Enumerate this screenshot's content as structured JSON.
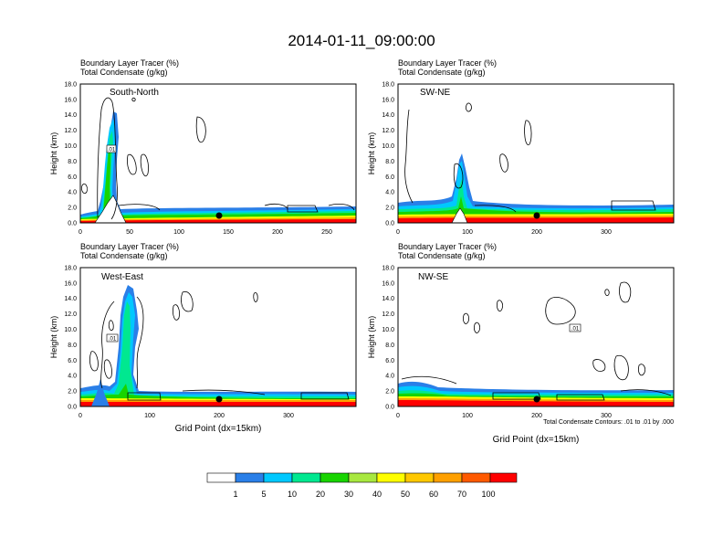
{
  "title": "2014-01-11_09:00:00",
  "colorbar": {
    "colors": [
      "#ffffff",
      "#2a7fe8",
      "#00c8ff",
      "#00e890",
      "#18d400",
      "#a8e840",
      "#ffff00",
      "#ffc800",
      "#ffa000",
      "#ff5a00",
      "#ff0000"
    ],
    "labels": [
      "1",
      "5",
      "10",
      "20",
      "30",
      "40",
      "50",
      "60",
      "70",
      "100"
    ]
  },
  "footnote": "Total Condensate Contours: .01 to .01 by .000",
  "chart_data": [
    {
      "type": "heatmap",
      "panel": "top-left",
      "title": "South-North",
      "subtitle_line1": "Boundary Layer Tracer   (%)",
      "subtitle_line2": "Total Condensate   (g/kg)",
      "ylabel": "Height (km)",
      "xlabel": "",
      "ylim": [
        0,
        18
      ],
      "xlim": [
        0,
        280
      ],
      "xticks": [
        "0",
        "50",
        "100",
        "150",
        "200",
        "250"
      ],
      "yticks": [
        "0.0",
        "2.0",
        "4.0",
        "6.0",
        "8.0",
        "10.0",
        "12.0",
        "14.0",
        "16.0",
        "18.0"
      ],
      "contour_label": ".01",
      "marker_x": 140
    },
    {
      "type": "heatmap",
      "panel": "top-right",
      "title": "SW-NE",
      "subtitle_line1": "Boundary Layer Tracer   (%)",
      "subtitle_line2": "Total Condensate   (g/kg)",
      "ylabel": "Height (km)",
      "xlabel": "",
      "ylim": [
        0,
        18
      ],
      "xlim": [
        0,
        400
      ],
      "xticks": [
        "0",
        "100",
        "200",
        "300"
      ],
      "yticks": [
        "0.0",
        "2.0",
        "4.0",
        "6.0",
        "8.0",
        "10.0",
        "12.0",
        "14.0",
        "16.0",
        "18.0"
      ],
      "marker_x": 200
    },
    {
      "type": "heatmap",
      "panel": "bottom-left",
      "title": "West-East",
      "subtitle_line1": "Boundary Layer Tracer   (%)",
      "subtitle_line2": "Total Condensate   (g/kg)",
      "ylabel": "Height (km)",
      "xlabel": "Grid Point (dx=15km)",
      "ylim": [
        0,
        18
      ],
      "xlim": [
        0,
        400
      ],
      "xticks": [
        "0",
        "100",
        "200",
        "300"
      ],
      "yticks": [
        "0.0",
        "2.0",
        "4.0",
        "6.0",
        "8.0",
        "10.0",
        "12.0",
        "14.0",
        "16.0",
        "18.0"
      ],
      "contour_label": ".01",
      "marker_x": 200
    },
    {
      "type": "heatmap",
      "panel": "bottom-right",
      "title": "NW-SE",
      "subtitle_line1": "Boundary Layer Tracer   (%)",
      "subtitle_line2": "Total Condensate   (g/kg)",
      "ylabel": "Height (km)",
      "xlabel": "Grid Point (dx=15km)",
      "ylim": [
        0,
        18
      ],
      "xlim": [
        0,
        400
      ],
      "xticks": [
        "0",
        "100",
        "200",
        "300"
      ],
      "yticks": [
        "0.0",
        "2.0",
        "4.0",
        "6.0",
        "8.0",
        "10.0",
        "12.0",
        "14.0",
        "16.0",
        "18.0"
      ],
      "contour_label": ".01",
      "marker_x": 200
    }
  ]
}
